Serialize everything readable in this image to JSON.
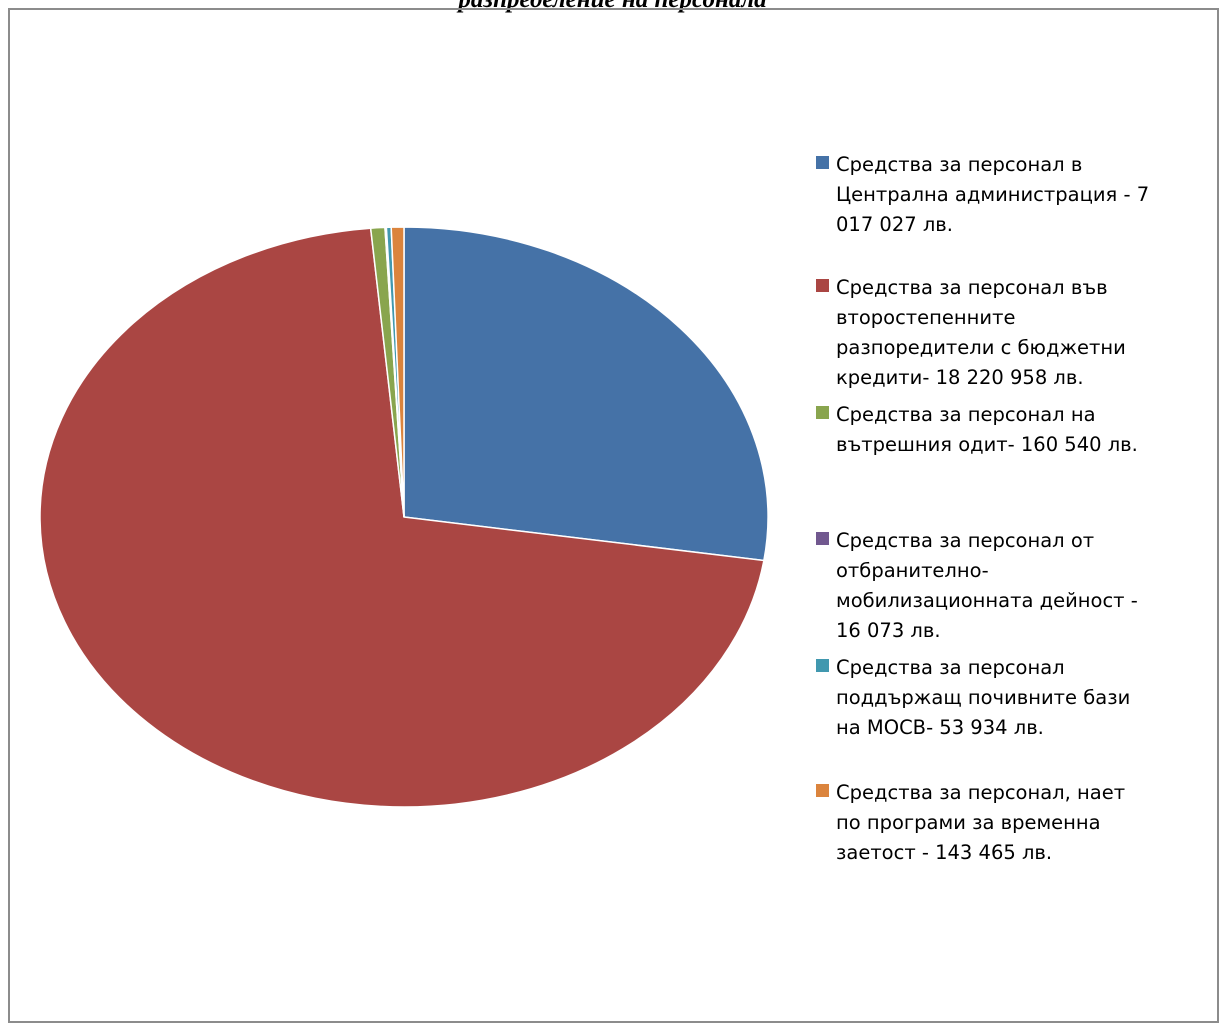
{
  "title": "разпределение на персонала",
  "chart_data": {
    "type": "pie",
    "title": "разпределение на персонала",
    "unit": "лв.",
    "start_angle_deg": 0,
    "direction": "clockwise",
    "legend_position": "right",
    "slices": [
      {
        "label": "Средства за персонал в Централна администрация  - 7 017 027 лв.",
        "value": 7017027,
        "color": "#4572A7"
      },
      {
        "label": "Средства за персонал във второстепенните разпоредители с бюджетни кредити- 18 220 958 лв.",
        "value": 18220958,
        "color": "#AA4643"
      },
      {
        "label": "Средства за персонал на вътрешния одит- 160 540 лв.",
        "value": 160540,
        "color": "#89A54E"
      },
      {
        "label": "Средства за персонал от отбранително-мобилизационната дейност - 16 073 лв.",
        "value": 16073,
        "color": "#71588F"
      },
      {
        "label": "Средства за персонал поддържащ почивните бази на МОСВ- 53 934 лв.",
        "value": 53934,
        "color": "#4198AF"
      },
      {
        "label": "Средства за персонал, нает по програми за временна заетост - 143 465 лв.",
        "value": 143465,
        "color": "#DB843D"
      }
    ],
    "legend_lines": [
      [
        "Средства за персонал в",
        "Централна администрация  - 7",
        "017 027 лв."
      ],
      [
        "Средства за персонал във",
        "второстепенните",
        "разпоредители с бюджетни",
        "кредити- 18 220 958 лв."
      ],
      [
        "Средства за персонал на",
        "вътрешния одит- 160 540 лв."
      ],
      [
        "Средства за персонал от",
        "отбранително-",
        "мобилизационната дейност -",
        "16 073 лв."
      ],
      [
        "Средства за персонал",
        "поддържащ почивните бази",
        "на МОСВ- 53 934 лв."
      ],
      [
        "Средства за персонал, нает",
        "по програми за временна",
        "заетост - 143 465 лв."
      ]
    ]
  }
}
